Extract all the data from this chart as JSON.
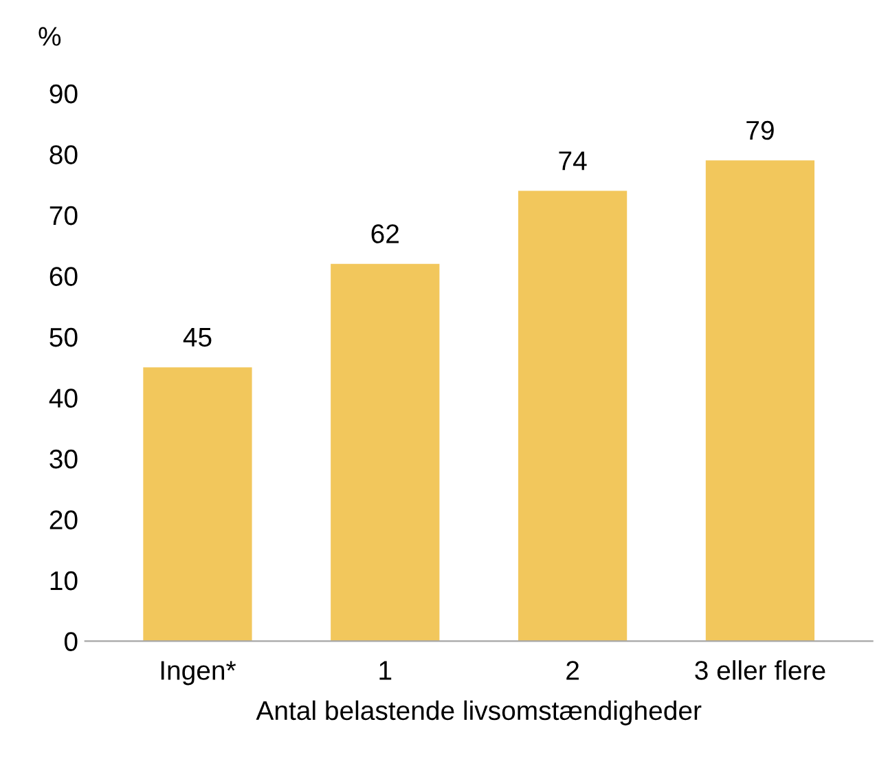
{
  "chart_data": {
    "type": "bar",
    "xlabel": "Antal belastende livsomstændigheder",
    "ylabel": "%",
    "categories": [
      "Ingen*",
      "1",
      "2",
      "3 eller flere"
    ],
    "values": [
      45,
      62,
      74,
      79
    ],
    "color": "#f2c75c",
    "ylim": [
      0,
      90
    ],
    "yticks": [
      0,
      10,
      20,
      30,
      40,
      50,
      60,
      70,
      80,
      90
    ],
    "grid": false,
    "data_labels": true,
    "legend": false
  }
}
